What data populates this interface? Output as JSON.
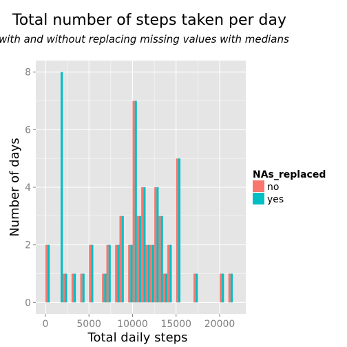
{
  "chart_data": {
    "type": "bar",
    "title": "Total number of steps taken per day",
    "subtitle": "with and without replacing missing values with medians",
    "xlabel": "Total daily steps",
    "ylabel": "Number of days",
    "xlim": [
      -1100,
      23000
    ],
    "ylim": [
      -0.4,
      8.4
    ],
    "x_ticks": [
      0,
      5000,
      10000,
      15000,
      20000
    ],
    "x_tick_labels": [
      "0",
      "5000",
      "10000",
      "15000",
      "20000"
    ],
    "y_ticks": [
      0,
      2,
      4,
      6,
      8
    ],
    "y_tick_labels": [
      "0",
      "2",
      "4",
      "6",
      "8"
    ],
    "grid": true,
    "legend_position": "right",
    "legend": {
      "title": "NAs_replaced",
      "items": [
        "no",
        "yes"
      ]
    },
    "colors": {
      "no": "#F8766D",
      "yes": "#00BFC4",
      "panel": "#E5E5E5",
      "grid": "#FFFFFF"
    },
    "bin_width": 500,
    "bins": [
      0,
      1500,
      2000,
      2500,
      3000,
      3500,
      4000,
      4500,
      5000,
      6500,
      7000,
      8000,
      8500,
      9500,
      10000,
      10500,
      11000,
      11500,
      12000,
      12500,
      13000,
      13500,
      14000,
      15000,
      17000,
      20000,
      21000
    ],
    "series": [
      {
        "name": "no",
        "values": [
          2,
          0,
          1,
          0,
          1,
          0,
          1,
          0,
          2,
          1,
          2,
          2,
          3,
          2,
          7,
          3,
          4,
          2,
          2,
          4,
          3,
          1,
          2,
          5,
          1,
          1,
          1
        ]
      },
      {
        "name": "yes",
        "values": [
          2,
          8,
          1,
          0,
          1,
          0,
          1,
          0,
          2,
          1,
          2,
          2,
          3,
          2,
          7,
          3,
          4,
          2,
          2,
          4,
          3,
          1,
          2,
          5,
          1,
          1,
          1
        ]
      }
    ]
  }
}
